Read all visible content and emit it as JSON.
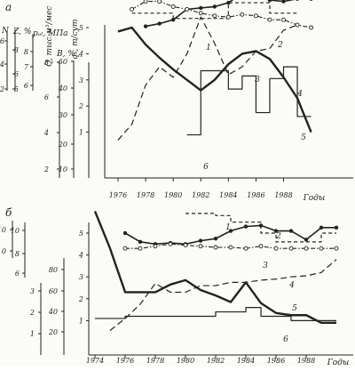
{
  "panels": [
    {
      "letter": "а"
    },
    {
      "letter": "б"
    }
  ],
  "year_axis_label": "Годы",
  "chart_data": [
    {
      "type": "line",
      "panel": "а",
      "xlabel": "Годы",
      "x_ticks": [
        1976,
        1978,
        1980,
        1982,
        1984,
        1986,
        1988
      ],
      "xlim": [
        1975.5,
        1990
      ],
      "axes": [
        {
          "label": "qₙ, т/сут",
          "ticks": [
            1,
            2,
            3,
            4,
            5
          ]
        },
        {
          "label": "B, %",
          "ticks": [
            10,
            20,
            30,
            40,
            50
          ]
        },
        {
          "label": "Q, тыс.м³/мес",
          "ticks": [
            2,
            4,
            6,
            8
          ]
        },
        {
          "label": "pₐₗ, МПа",
          "ticks": [
            6,
            7,
            8
          ]
        },
        {
          "label": "Z, %",
          "ticks": [
            5,
            6,
            8
          ]
        },
        {
          "label": "N",
          "ticks": [
            2,
            4,
            6
          ]
        }
      ],
      "series": [
        {
          "name": "1",
          "style": "dashed-step",
          "x": [
            1977,
            1978,
            1979,
            1980,
            1981,
            1982,
            1983,
            1984,
            1985,
            1986,
            1987,
            1988,
            1989
          ],
          "y": [
            5.55,
            5.55,
            5.55,
            5.35,
            5.35,
            5.35,
            5.35,
            5.95,
            5.95,
            5.95,
            5.55,
            5.55,
            5.55
          ]
        },
        {
          "name": "2",
          "style": "solid-dots",
          "x": [
            1978,
            1979,
            1980,
            1981,
            1982,
            1983,
            1984,
            1985,
            1986,
            1987,
            1988,
            1989,
            1990
          ],
          "y": [
            5.05,
            5.15,
            5.3,
            5.7,
            5.75,
            5.8,
            5.95,
            6.3,
            6.3,
            6.05,
            6.0,
            6.1,
            6.1
          ]
        },
        {
          "name": "3",
          "style": "dash-dot-circles",
          "x": [
            1977,
            1978,
            1979,
            1980,
            1981,
            1982,
            1983,
            1984,
            1985,
            1986,
            1987,
            1988,
            1989,
            1990
          ],
          "y": [
            5.7,
            6.0,
            6.0,
            5.8,
            5.7,
            5.55,
            5.45,
            5.4,
            5.5,
            5.45,
            5.3,
            5.3,
            5.1,
            5.0
          ]
        },
        {
          "name": "4",
          "style": "dashed",
          "x": [
            1976,
            1977,
            1978,
            1979,
            1980,
            1981,
            1982,
            1983,
            1984,
            1985,
            1986,
            1987,
            1988,
            1989
          ],
          "y": [
            0.7,
            1.3,
            2.8,
            3.5,
            3.1,
            4.0,
            5.4,
            4.4,
            3.2,
            3.5,
            4.1,
            4.2,
            4.9,
            5.1
          ]
        },
        {
          "name": "5",
          "style": "solid-thick",
          "x": [
            1976,
            1977,
            1978,
            1979,
            1980,
            1981,
            1982,
            1983,
            1984,
            1985,
            1986,
            1987,
            1988,
            1989,
            1990
          ],
          "y": [
            4.85,
            5.0,
            4.35,
            3.85,
            3.4,
            3.0,
            2.6,
            3.0,
            3.6,
            4.0,
            4.1,
            3.8,
            3.1,
            2.3,
            1.0
          ]
        },
        {
          "name": "6",
          "style": "step",
          "x": [
            1981,
            1982,
            1983,
            1984,
            1985,
            1986,
            1987,
            1988,
            1989,
            1990
          ],
          "y": [
            0.9,
            3.35,
            3.35,
            2.65,
            3.15,
            1.75,
            3.05,
            3.5,
            1.6,
            1.6
          ]
        }
      ]
    },
    {
      "type": "line",
      "panel": "б",
      "xlabel": "Годы",
      "x_ticks": [
        1974,
        1976,
        1978,
        1980,
        1982,
        1984,
        1986,
        1988
      ],
      "xlim": [
        1973.5,
        1990
      ],
      "axes": [
        {
          "label": "",
          "ticks": [
            1,
            2,
            3,
            4,
            5
          ]
        },
        {
          "label": "",
          "ticks": [
            20,
            40,
            60,
            80
          ]
        },
        {
          "label": "",
          "ticks": [
            1,
            2,
            3
          ]
        },
        {
          "label": "",
          "ticks": [
            6,
            8,
            10
          ]
        },
        {
          "label": "",
          "ticks": [
            0,
            10
          ]
        }
      ],
      "series": [
        {
          "name": "1",
          "style": "dashed-step",
          "x": [
            1980,
            1981,
            1982,
            1983,
            1984,
            1985,
            1986,
            1987,
            1988,
            1989,
            1990
          ],
          "y": [
            5.9,
            5.9,
            5.8,
            5.5,
            5.5,
            5.0,
            4.6,
            4.6,
            4.6,
            5.0,
            5.0
          ]
        },
        {
          "name": "2",
          "style": "solid-dots",
          "x": [
            1976,
            1977,
            1978,
            1979,
            1980,
            1981,
            1982,
            1983,
            1984,
            1985,
            1986,
            1987,
            1988,
            1989,
            1990
          ],
          "y": [
            5.0,
            4.6,
            4.5,
            4.55,
            4.5,
            4.65,
            4.75,
            5.1,
            5.3,
            5.35,
            5.1,
            5.1,
            4.7,
            5.25,
            5.25
          ]
        },
        {
          "name": "3",
          "style": "dash-dot-circles",
          "x": [
            1976,
            1977,
            1978,
            1979,
            1980,
            1981,
            1982,
            1983,
            1984,
            1985,
            1986,
            1987,
            1988,
            1989,
            1990
          ],
          "y": [
            4.3,
            4.3,
            4.4,
            4.5,
            4.45,
            4.4,
            4.35,
            4.35,
            4.3,
            4.4,
            4.3,
            4.3,
            4.3,
            4.3,
            4.3
          ]
        },
        {
          "name": "4",
          "style": "dashed",
          "x": [
            1975,
            1976,
            1977,
            1978,
            1979,
            1980,
            1981,
            1982,
            1983,
            1984,
            1985,
            1986,
            1987,
            1988,
            1989,
            1990
          ],
          "y": [
            0.55,
            1.1,
            1.75,
            2.7,
            2.3,
            2.3,
            2.6,
            2.6,
            2.75,
            2.75,
            2.85,
            2.9,
            3.0,
            3.05,
            3.2,
            3.8
          ]
        },
        {
          "name": "5",
          "style": "solid-thick",
          "x": [
            1974,
            1975,
            1976,
            1977,
            1978,
            1979,
            1980,
            1981,
            1982,
            1983,
            1984,
            1985,
            1986,
            1987,
            1988,
            1989,
            1990
          ],
          "y": [
            6.0,
            4.3,
            2.3,
            2.3,
            2.3,
            2.65,
            2.85,
            2.4,
            2.15,
            1.85,
            2.75,
            1.8,
            1.35,
            1.25,
            1.25,
            0.9,
            0.9
          ]
        },
        {
          "name": "6",
          "style": "step",
          "x": [
            1974,
            1975,
            1976,
            1977,
            1978,
            1979,
            1980,
            1981,
            1982,
            1983,
            1984,
            1985,
            1986,
            1987,
            1988,
            1989,
            1990
          ],
          "y": [
            1.1,
            1.1,
            1.2,
            1.2,
            1.2,
            1.2,
            1.2,
            1.2,
            1.4,
            1.4,
            1.6,
            1.2,
            1.2,
            1.0,
            1.0,
            1.0,
            1.0
          ]
        }
      ]
    }
  ]
}
